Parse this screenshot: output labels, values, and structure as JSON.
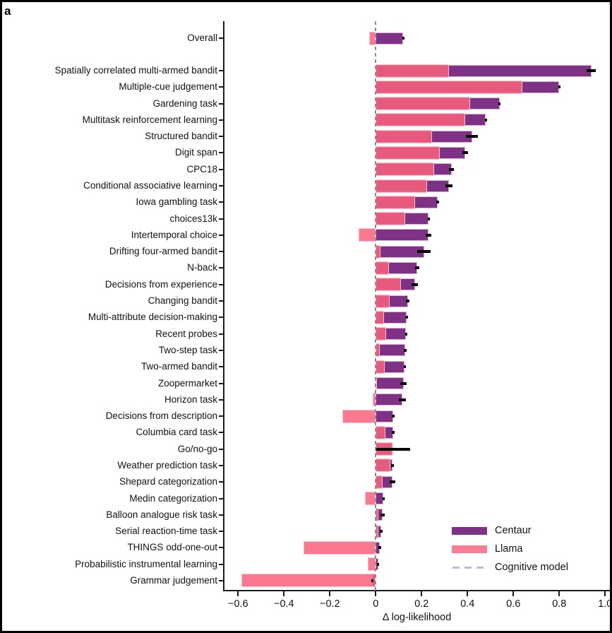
{
  "panel_label": "a",
  "chart_data": {
    "type": "bar",
    "orientation": "horizontal",
    "title": "",
    "xlabel": "Δ log-likelihood",
    "ylabel": "",
    "xlim": [
      -0.66,
      1.01
    ],
    "grid": false,
    "xticks": [
      -0.6,
      -0.4,
      -0.2,
      0,
      0.2,
      0.4,
      0.6,
      0.8,
      1.0
    ],
    "xtick_labels": [
      "−0.6",
      "−0.4",
      "−0.2",
      "0",
      "0.2",
      "0.4",
      "0.6",
      "0.8",
      "1.0"
    ],
    "categories": [
      "Overall",
      "Spatially correlated multi-armed bandit",
      "Multiple-cue judgement",
      "Gardening task",
      "Multitask reinforcement learning",
      "Structured bandit",
      "Digit span",
      "CPC18",
      "Conditional associative learning",
      "Iowa gambling task",
      "choices13k",
      "Intertemporal choice",
      "Drifting four-armed bandit",
      "N-back",
      "Decisions from experience",
      "Changing bandit",
      "Multi-attribute decision-making",
      "Recent probes",
      "Two-step task",
      "Two-armed bandit",
      "Zoopermarket",
      "Horizon task",
      "Decisions from description",
      "Columbia card task",
      "Go/no-go",
      "Weather prediction task",
      "Shepard categorization",
      "Medin categorization",
      "Balloon analogue risk task",
      "Serial reaction-time task",
      "THINGS odd-one-out",
      "Probabilistic instrumental learning",
      "Grammar judgement"
    ],
    "series": [
      {
        "name": "Centaur",
        "color": "#7e3185",
        "values": [
          0.12,
          0.94,
          0.8,
          0.54,
          0.48,
          0.42,
          0.39,
          0.33,
          0.32,
          0.27,
          0.23,
          0.23,
          0.21,
          0.18,
          0.17,
          0.14,
          0.134,
          0.131,
          0.128,
          0.125,
          0.122,
          0.116,
          0.076,
          0.076,
          0.076,
          0.073,
          0.073,
          0.033,
          0.03,
          0.024,
          0.018,
          0.01,
          -0.015
        ]
      },
      {
        "name": "Llama",
        "color": "#fa7b92",
        "values": [
          -0.03,
          0.32,
          0.64,
          0.41,
          0.39,
          0.245,
          0.28,
          0.254,
          0.224,
          0.171,
          0.128,
          -0.075,
          0.021,
          0.058,
          0.11,
          0.061,
          0.036,
          0.045,
          0.018,
          0.039,
          0.004,
          -0.013,
          -0.146,
          0.042,
          0.073,
          0.064,
          0.03,
          -0.047,
          0.011,
          0.011,
          -0.315,
          -0.034,
          -0.586
        ]
      }
    ],
    "error_bars": {
      "series": "Centaur",
      "half_widths": [
        0.005,
        0.02,
        0.005,
        0.005,
        0.005,
        0.026,
        0.012,
        0.012,
        0.016,
        0.006,
        0.004,
        0.012,
        0.03,
        0.009,
        0.014,
        0.008,
        0.003,
        0.003,
        0.006,
        0.003,
        0.014,
        0.014,
        0.006,
        0.007,
        0.073,
        0.007,
        0.012,
        0.003,
        0.009,
        0.007,
        0.006,
        0.004,
        0.004
      ]
    },
    "baseline": {
      "label": "Cognitive model",
      "value": 0,
      "style": "dashed",
      "color": "#beb9dd",
      "zero_line_color": "#8e8e8e"
    },
    "legend": {
      "position": "bottom-right",
      "entries": [
        "Centaur",
        "Llama",
        "Cognitive model"
      ]
    }
  }
}
